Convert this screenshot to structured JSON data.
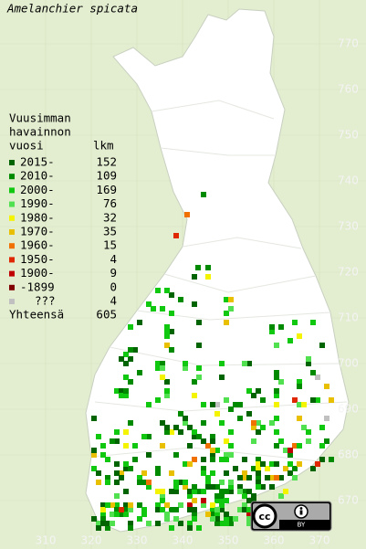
{
  "title": "Amelanchier spicata",
  "legend": {
    "header": [
      "Vuusimman",
      "havainnon",
      "vuosi"
    ],
    "count_header": "lkm",
    "rows": [
      {
        "label": "2015-",
        "count": 152,
        "color": "#006400"
      },
      {
        "label": "2010-",
        "count": 109,
        "color": "#008a00"
      },
      {
        "label": "2000-",
        "count": 169,
        "color": "#10c810"
      },
      {
        "label": "1990-",
        "count": 76,
        "color": "#50e050"
      },
      {
        "label": "1980-",
        "count": 32,
        "color": "#f4f400"
      },
      {
        "label": "1970-",
        "count": 35,
        "color": "#e8c000"
      },
      {
        "label": "1960-",
        "count": 15,
        "color": "#f07000"
      },
      {
        "label": "1950-",
        "count": 4,
        "color": "#e02800"
      },
      {
        "label": "1900-",
        "count": 9,
        "color": "#c00000"
      },
      {
        "label": "-1899",
        "count": 0,
        "color": "#800000"
      },
      {
        "label": "???",
        "count": 4,
        "color": "#c0c0c0"
      }
    ],
    "total_label": "Yhteensä",
    "total": 605
  },
  "axes": {
    "y_ticks": [
      770,
      760,
      750,
      740,
      730,
      720,
      710,
      700,
      690,
      680,
      670
    ],
    "x_ticks": [
      310,
      320,
      330,
      340,
      350,
      360,
      370
    ]
  },
  "badge": {
    "icon": "cc",
    "license": "BY"
  }
}
